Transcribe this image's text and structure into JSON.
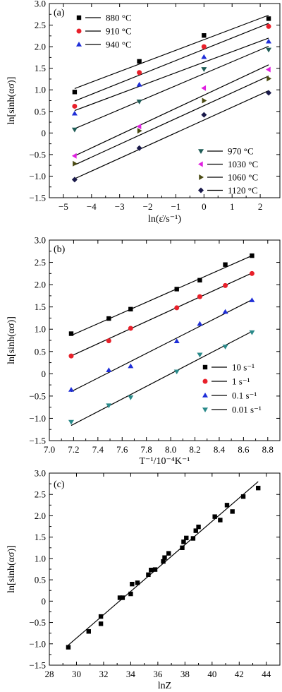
{
  "chart_data": [
    {
      "type": "scatter",
      "panel_label": "(a)",
      "xlabel": "ln(ε̇/s⁻¹)",
      "ylabel": "ln[sinh(ασ)]",
      "xlim": [
        -5.5,
        2.7
      ],
      "ylim": [
        -1.5,
        3.0
      ],
      "xticks": [
        -5,
        -4,
        -3,
        -2,
        -1,
        0,
        1,
        2
      ],
      "xtick_labels": [
        "−5",
        "−4",
        "−3",
        "−2",
        "−1",
        "0",
        "1",
        "2"
      ],
      "yticks": [
        -1.5,
        -1.0,
        -0.5,
        0,
        0.5,
        1.0,
        1.5,
        2.0,
        2.5,
        3.0
      ],
      "ytick_labels": [
        "−1.5",
        "−1.0",
        "−0.5",
        "0",
        "0.5",
        "1.0",
        "1.5",
        "2.0",
        "2.5",
        "3.0"
      ],
      "grid": false,
      "legend_groups": [
        {
          "placement": "top-left",
          "series": [
            0,
            1,
            2
          ]
        },
        {
          "placement": "bottom-right",
          "series": [
            3,
            4,
            5,
            6
          ]
        }
      ],
      "series": [
        {
          "name": "880 °C",
          "marker": "square",
          "color": "#000000",
          "x": [
            -4.6,
            -2.3,
            0,
            2.3
          ],
          "y": [
            0.95,
            1.66,
            2.26,
            2.65
          ],
          "fit": [
            [
              -4.6,
              1.03
            ],
            [
              2.3,
              2.73
            ]
          ]
        },
        {
          "name": "910 °C",
          "marker": "circle",
          "color": "#e8202a",
          "x": [
            -4.6,
            -2.3,
            0,
            2.3
          ],
          "y": [
            0.62,
            1.4,
            2.0,
            2.47
          ],
          "fit": [
            [
              -4.6,
              0.74
            ],
            [
              2.3,
              2.54
            ]
          ]
        },
        {
          "name": "940 °C",
          "marker": "triangle-up",
          "color": "#1f2fd8",
          "x": [
            -4.6,
            -2.3,
            0,
            2.3
          ],
          "y": [
            0.45,
            1.12,
            1.76,
            2.12
          ],
          "fit": [
            [
              -4.6,
              0.52
            ],
            [
              2.3,
              2.2
            ]
          ]
        },
        {
          "name": "970 °C",
          "marker": "triangle-down",
          "color": "#1f5c56",
          "x": [
            -4.6,
            -2.3,
            0,
            2.3
          ],
          "y": [
            0.08,
            0.73,
            1.48,
            1.93
          ],
          "fit": [
            [
              -4.6,
              0.1
            ],
            [
              2.3,
              2.01
            ]
          ]
        },
        {
          "name": "1030 °C",
          "marker": "triangle-left",
          "color": "#e020e0",
          "x": [
            -4.6,
            -2.3,
            0,
            2.3
          ],
          "y": [
            -0.53,
            0.15,
            1.04,
            1.47
          ],
          "fit": [
            [
              -4.6,
              -0.53
            ],
            [
              2.3,
              1.58
            ]
          ]
        },
        {
          "name": "1060 °C",
          "marker": "triangle-right",
          "color": "#4a4a12",
          "x": [
            -4.6,
            -2.3,
            0,
            2.3
          ],
          "y": [
            -0.71,
            0.05,
            0.75,
            1.26
          ],
          "fit": [
            [
              -4.6,
              -0.74
            ],
            [
              2.3,
              1.32
            ]
          ]
        },
        {
          "name": "1120 °C",
          "marker": "diamond",
          "color": "#1a1a4a",
          "x": [
            -4.6,
            -2.3,
            0,
            2.3
          ],
          "y": [
            -1.08,
            -0.35,
            0.42,
            0.93
          ],
          "fit": [
            [
              -4.6,
              -1.06
            ],
            [
              2.3,
              0.98
            ]
          ]
        }
      ]
    },
    {
      "type": "scatter",
      "panel_label": "(b)",
      "xlabel": "T⁻¹/10⁻⁴K⁻¹",
      "ylabel": "ln[sinh(ασ)]",
      "xlim": [
        7.0,
        8.9
      ],
      "ylim": [
        -1.5,
        3.0
      ],
      "xticks": [
        7.0,
        7.2,
        7.4,
        7.6,
        7.8,
        8.0,
        8.2,
        8.4,
        8.6,
        8.8
      ],
      "xtick_labels": [
        "7.0",
        "7.2",
        "7.4",
        "7.6",
        "7.8",
        "8.0",
        "8.2",
        "8.4",
        "8.6",
        "8.8"
      ],
      "yticks": [
        -1.5,
        -1.0,
        -0.5,
        0,
        0.5,
        1.0,
        1.5,
        2.0,
        2.5,
        3.0
      ],
      "ytick_labels": [
        "−1.5",
        "−1.0",
        "−0.5",
        "0",
        "0.5",
        "1.0",
        "1.5",
        "2.0",
        "2.5",
        "3.0"
      ],
      "grid": false,
      "legend_groups": [
        {
          "placement": "bottom-right",
          "series": [
            0,
            1,
            2,
            3
          ]
        }
      ],
      "series": [
        {
          "name": "10 s⁻¹",
          "marker": "square",
          "color": "#000000",
          "x": [
            7.18,
            7.49,
            7.67,
            8.05,
            8.24,
            8.45,
            8.67
          ],
          "y": [
            0.9,
            1.24,
            1.45,
            1.9,
            2.1,
            2.45,
            2.65
          ],
          "fit": [
            [
              7.18,
              0.86
            ],
            [
              8.67,
              2.65
            ]
          ]
        },
        {
          "name": "1 s⁻¹",
          "marker": "circle",
          "color": "#e8202a",
          "x": [
            7.18,
            7.49,
            7.67,
            8.05,
            8.24,
            8.45,
            8.67
          ],
          "y": [
            0.4,
            0.74,
            1.02,
            1.48,
            1.73,
            1.98,
            2.25
          ],
          "fit": [
            [
              7.18,
              0.4
            ],
            [
              8.67,
              2.26
            ]
          ]
        },
        {
          "name": "0.1 s⁻¹",
          "marker": "triangle-up",
          "color": "#1f2fd8",
          "x": [
            7.18,
            7.49,
            7.67,
            8.05,
            8.24,
            8.45,
            8.67
          ],
          "y": [
            -0.36,
            0.08,
            0.17,
            0.73,
            1.12,
            1.39,
            1.65
          ],
          "fit": [
            [
              7.18,
              -0.4
            ],
            [
              8.67,
              1.66
            ]
          ]
        },
        {
          "name": "0.01 s⁻¹",
          "marker": "triangle-down",
          "color": "#2a8a8a",
          "x": [
            7.18,
            7.49,
            7.67,
            8.05,
            8.24,
            8.45,
            8.67
          ],
          "y": [
            -1.08,
            -0.71,
            -0.53,
            0.05,
            0.43,
            0.61,
            0.93
          ],
          "fit": [
            [
              7.18,
              -1.16
            ],
            [
              8.67,
              0.95
            ]
          ]
        }
      ]
    },
    {
      "type": "scatter",
      "panel_label": "(c)",
      "xlabel": "lnZ",
      "ylabel": "ln[sinh(ασ)]",
      "xlim": [
        28,
        45
      ],
      "ylim": [
        -1.5,
        3.0
      ],
      "xticks": [
        28,
        30,
        32,
        34,
        36,
        38,
        40,
        42,
        44
      ],
      "xtick_labels": [
        "28",
        "30",
        "32",
        "34",
        "36",
        "38",
        "40",
        "42",
        "44"
      ],
      "yticks": [
        -1.5,
        -1.0,
        -0.5,
        0,
        0.5,
        1.0,
        1.5,
        2.0,
        2.5,
        3.0
      ],
      "ytick_labels": [
        "−1.5",
        "−1.0",
        "−0.5",
        "0",
        "0.5",
        "1.0",
        "1.5",
        "2.0",
        "2.5",
        "3.0"
      ],
      "grid": false,
      "series": [
        {
          "marker": "square",
          "color": "#000000",
          "x": [
            29.4,
            30.9,
            31.8,
            31.8,
            33.2,
            33.4,
            34.0,
            34.1,
            34.5,
            35.3,
            35.5,
            35.8,
            36.4,
            36.5,
            36.8,
            37.8,
            37.9,
            38.1,
            38.6,
            38.8,
            39.0,
            40.2,
            40.6,
            41.1,
            41.5,
            42.3,
            43.4
          ],
          "y": [
            -1.08,
            -0.71,
            -0.53,
            -0.36,
            0.08,
            0.08,
            0.17,
            0.4,
            0.43,
            0.62,
            0.73,
            0.74,
            0.93,
            1.02,
            1.12,
            1.25,
            1.39,
            1.48,
            1.47,
            1.65,
            1.74,
            1.98,
            1.9,
            2.25,
            2.1,
            2.45,
            2.65
          ],
          "fit": [
            [
              29.4,
              -1.03
            ],
            [
              43.4,
              2.8
            ]
          ]
        }
      ]
    }
  ]
}
